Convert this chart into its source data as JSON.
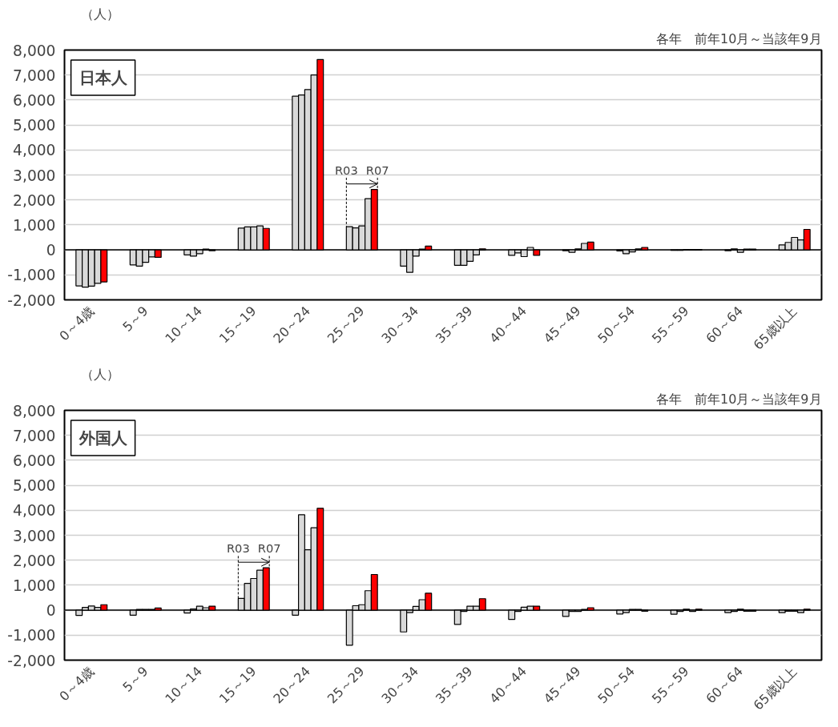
{
  "chart_data": [
    {
      "type": "bar",
      "title": "日本人",
      "subtitle": "各年　前年10月～当該年9月",
      "ylabel": "（人）",
      "categories": [
        "0～4歳",
        "5～9",
        "10～14",
        "15～19",
        "20～24",
        "25～29",
        "30～34",
        "35～39",
        "40～44",
        "45～49",
        "50～54",
        "55～59",
        "60～64",
        "65歳以上"
      ],
      "series": [
        {
          "color": "#d9d9d9",
          "values": [
            -1440,
            -600,
            -200,
            870,
            6150,
            930,
            -650,
            -620,
            -220,
            -30,
            -40,
            -20,
            -30,
            200
          ]
        },
        {
          "color": "#d9d9d9",
          "values": [
            -1490,
            -650,
            -250,
            920,
            6200,
            880,
            -900,
            -620,
            -120,
            -100,
            -150,
            -20,
            40,
            300
          ]
        },
        {
          "color": "#d9d9d9",
          "values": [
            -1450,
            -500,
            -150,
            920,
            6420,
            960,
            -250,
            -460,
            -270,
            40,
            -80,
            20,
            -100,
            500
          ]
        },
        {
          "color": "#d9d9d9",
          "values": [
            -1340,
            -280,
            30,
            960,
            7000,
            2050,
            30,
            -200,
            100,
            260,
            40,
            20,
            30,
            400
          ]
        },
        {
          "color": "#ff0000",
          "values": [
            -1280,
            -300,
            -30,
            860,
            7620,
            2420,
            150,
            40,
            -220,
            310,
            100,
            20,
            30,
            820
          ]
        }
      ],
      "annotations": [
        {
          "text": "R03",
          "y": 930
        },
        {
          "text": "R07",
          "y": 2420
        }
      ],
      "ylim": [
        -2000,
        8000
      ],
      "yticks": [
        {
          "value": -2000,
          "label": "-2,000"
        },
        {
          "value": -1000,
          "label": "-1,000"
        },
        0,
        {
          "value": 1000,
          "label": "1,000"
        },
        {
          "value": 2000,
          "label": "2,000"
        },
        {
          "value": 3000,
          "label": "3,000"
        },
        {
          "value": 4000,
          "label": "4,000"
        },
        {
          "value": 5000,
          "label": "5,000"
        },
        {
          "value": 6000,
          "label": "6,000"
        },
        {
          "value": 7000,
          "label": "7,000"
        },
        {
          "value": 8000,
          "label": "8,000"
        }
      ],
      "grid": "y"
    },
    {
      "type": "bar",
      "title": "外国人",
      "subtitle": "各年　前年10月～当該年9月",
      "ylabel": "（人）",
      "categories": [
        "0～4歳",
        "5～9",
        "10～14",
        "15～19",
        "20～24",
        "25～29",
        "30～34",
        "35～39",
        "40～44",
        "45～49",
        "50～54",
        "55～59",
        "60～64",
        "65歳以上"
      ],
      "series": [
        {
          "color": "#d9d9d9",
          "values": [
            -210,
            -200,
            -110,
            470,
            -200,
            -1400,
            -870,
            -570,
            -370,
            -250,
            -150,
            -160,
            -100,
            -100
          ]
        },
        {
          "color": "#d9d9d9",
          "values": [
            110,
            30,
            50,
            1070,
            3820,
            180,
            -100,
            -50,
            -50,
            -50,
            -100,
            -50,
            -50,
            -40
          ]
        },
        {
          "color": "#d9d9d9",
          "values": [
            170,
            30,
            160,
            1270,
            2420,
            220,
            150,
            160,
            120,
            -50,
            30,
            40,
            40,
            -40
          ]
        },
        {
          "color": "#d9d9d9",
          "values": [
            110,
            30,
            100,
            1600,
            3300,
            780,
            420,
            160,
            160,
            30,
            30,
            -50,
            -40,
            -100
          ]
        },
        {
          "color": "#ff0000",
          "values": [
            220,
            90,
            160,
            1700,
            4080,
            1430,
            680,
            460,
            160,
            100,
            -40,
            40,
            -40,
            40
          ]
        }
      ],
      "annotations": [
        {
          "text": "R03",
          "y": 470
        },
        {
          "text": "R07",
          "y": 1700
        }
      ],
      "ylim": [
        -2000,
        8000
      ],
      "yticks": [
        {
          "value": -2000,
          "label": "-2,000"
        },
        {
          "value": -1000,
          "label": "-1,000"
        },
        0,
        {
          "value": 1000,
          "label": "1,000"
        },
        {
          "value": 2000,
          "label": "2,000"
        },
        {
          "value": 3000,
          "label": "3,000"
        },
        {
          "value": 4000,
          "label": "4,000"
        },
        {
          "value": 5000,
          "label": "5,000"
        },
        {
          "value": 6000,
          "label": "6,000"
        },
        {
          "value": 7000,
          "label": "7,000"
        },
        {
          "value": 8000,
          "label": "8,000"
        }
      ],
      "grid": "y"
    }
  ]
}
